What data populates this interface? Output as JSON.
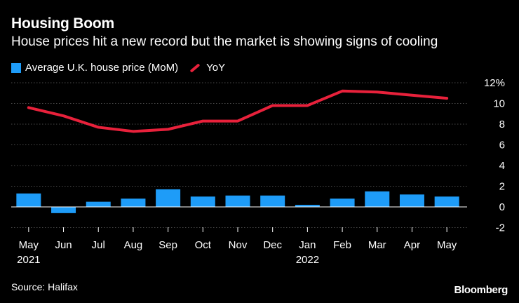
{
  "header": {
    "title": "Housing Boom",
    "subtitle": "House prices hit a new record but the market is showing signs of cooling"
  },
  "footer": {
    "source": "Source: Halifax",
    "brand": "Bloomberg"
  },
  "colors": {
    "bar": "#1e9cf8",
    "line": "#e8213b",
    "grid": "#4a4a4a",
    "background": "#000000"
  },
  "chart_data": {
    "type": "bar",
    "title": "Housing Boom",
    "categories": [
      "May",
      "Jun",
      "Jul",
      "Aug",
      "Sep",
      "Oct",
      "Nov",
      "Dec",
      "Jan",
      "Feb",
      "Mar",
      "Apr",
      "May"
    ],
    "year_labels": [
      "2021",
      "",
      "",
      "",
      "",
      "",
      "",
      "",
      "2022",
      "",
      "",
      "",
      ""
    ],
    "series": [
      {
        "name": "Average U.K. house price (MoM)",
        "type": "bar",
        "values": [
          1.3,
          -0.6,
          0.5,
          0.8,
          1.7,
          1.0,
          1.1,
          1.1,
          0.2,
          0.8,
          1.5,
          1.2,
          1.0
        ]
      },
      {
        "name": "YoY",
        "type": "line",
        "values": [
          9.6,
          8.8,
          7.7,
          7.3,
          7.5,
          8.3,
          8.3,
          9.8,
          9.8,
          11.2,
          11.1,
          10.8,
          10.5
        ]
      }
    ],
    "y_ticks": [
      "12%",
      "10",
      "8",
      "6",
      "4",
      "2",
      "0",
      "-2"
    ],
    "ylim": [
      -2,
      12
    ],
    "grid": true,
    "legend": "top-left"
  }
}
